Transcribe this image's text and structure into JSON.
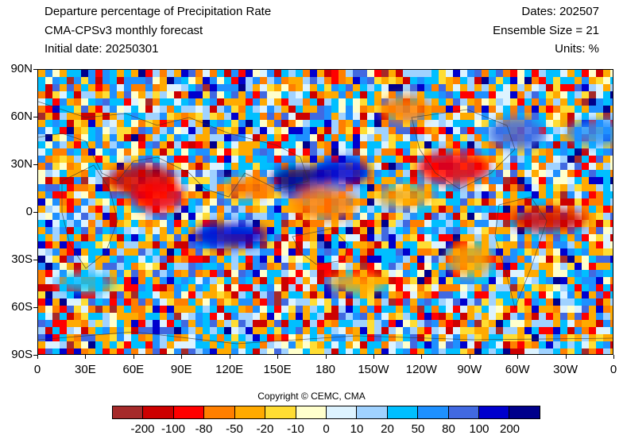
{
  "header": {
    "title": "Departure percentage of Precipitation Rate",
    "subtitle": "CMA-CPSv3 monthly forecast",
    "initial_date": "Initial date: 20250301",
    "dates": "Dates: 202507",
    "ensemble": "Ensemble Size = 21",
    "units": "Units: %"
  },
  "axes": {
    "y_labels": [
      "90N",
      "60N",
      "30N",
      "0",
      "30S",
      "60S",
      "90S"
    ],
    "x_labels": [
      "0",
      "30E",
      "60E",
      "90E",
      "120E",
      "150E",
      "180",
      "150W",
      "120W",
      "90W",
      "60W",
      "30W",
      "0"
    ]
  },
  "copyright": "Copyright © CEMC, CMA",
  "colorbar": {
    "colors": [
      "#a52a2a",
      "#cd0000",
      "#ff0000",
      "#ff7f00",
      "#ffaa00",
      "#ffdd33",
      "#ffffcc",
      "#ddf3ff",
      "#a0d2ff",
      "#00bfff",
      "#1e90ff",
      "#4169e1",
      "#0000cd",
      "#00008b"
    ],
    "labels": [
      "-200",
      "-100",
      "-80",
      "-50",
      "-20",
      "-10",
      "0",
      "10",
      "20",
      "50",
      "80",
      "100",
      "200"
    ]
  },
  "map": {
    "anomaly_regions": [
      {
        "lon": 65,
        "lat": 20,
        "level": "-100",
        "color": "#cd0000"
      },
      {
        "lon": 75,
        "lat": 10,
        "level": "-80",
        "color": "#ff0000"
      },
      {
        "lon": 130,
        "lat": 15,
        "level": "-50",
        "color": "#ff7f00"
      },
      {
        "lon": 165,
        "lat": 20,
        "level": "200",
        "color": "#00008b"
      },
      {
        "lon": 190,
        "lat": 25,
        "level": "200",
        "color": "#0000cd"
      },
      {
        "lon": 260,
        "lat": 28,
        "level": "-80",
        "color": "#ff0000"
      },
      {
        "lon": 120,
        "lat": -15,
        "level": "100",
        "color": "#0000cd"
      },
      {
        "lon": 320,
        "lat": -5,
        "level": "-100",
        "color": "#cd0000"
      },
      {
        "lon": 180,
        "lat": 5,
        "level": "-50",
        "color": "#ff7f00"
      },
      {
        "lon": 230,
        "lat": 10,
        "level": "-20",
        "color": "#ffaa00"
      },
      {
        "lon": 350,
        "lat": 50,
        "level": "80",
        "color": "#1e90ff"
      },
      {
        "lon": 230,
        "lat": 65,
        "level": "-50",
        "color": "#ff7f00"
      },
      {
        "lon": 200,
        "lat": -45,
        "level": "-20",
        "color": "#ffaa00"
      },
      {
        "lon": 30,
        "lat": -45,
        "level": "50",
        "color": "#00bfff"
      },
      {
        "lon": 300,
        "lat": 50,
        "level": "100",
        "color": "#4169e1"
      },
      {
        "lon": 270,
        "lat": -30,
        "level": "-20",
        "color": "#ffaa00"
      }
    ]
  }
}
